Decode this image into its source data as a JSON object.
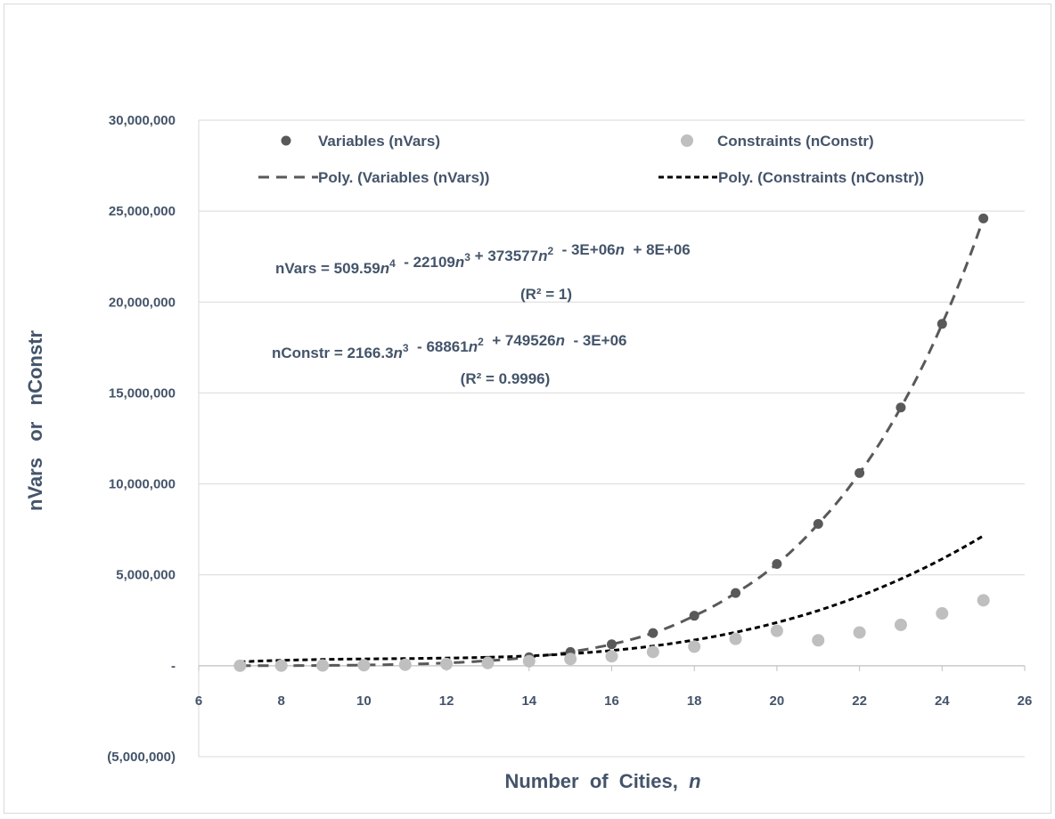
{
  "chart_data": {
    "type": "scatter",
    "xlabel": "Number  of  Cities,  ",
    "xlabel_var": "n",
    "ylabel": "nVars   or   nConstr",
    "xlim": [
      6,
      26
    ],
    "ylim": [
      -5000000,
      30000000
    ],
    "grid": true,
    "legend_position": "top",
    "x_ticks": [
      "6",
      "8",
      "10",
      "12",
      "14",
      "16",
      "18",
      "20",
      "22",
      "24",
      "26"
    ],
    "y_ticks": [
      "30,000,000",
      "25,000,000",
      "20,000,000",
      "15,000,000",
      "10,000,000",
      "5,000,000",
      "-",
      "(5,000,000)"
    ],
    "x": [
      7,
      8,
      9,
      10,
      11,
      12,
      13,
      14,
      15,
      16,
      17,
      18,
      19,
      20,
      21,
      22,
      23,
      24,
      25
    ],
    "series": [
      {
        "name": "Variables (nVars)",
        "color": "#595959",
        "values": [
          2100,
          7000,
          18000,
          40000,
          82000,
          155000,
          275000,
          470000,
          760000,
          1180000,
          1800000,
          2750000,
          4000000,
          5600000,
          7800000,
          10600000,
          14200000,
          18800000,
          24600000
        ]
      },
      {
        "name": "Constraints (nConstr)",
        "color": "#bfbfbf",
        "values": [
          2000,
          6000,
          15000,
          30000,
          55000,
          95000,
          150000,
          250000,
          370000,
          520000,
          760000,
          1050000,
          1480000,
          1920000,
          1400000,
          1830000,
          2250000,
          2880000,
          3600000
        ]
      }
    ],
    "trendlines": [
      {
        "name": "Poly. (Variables (nVars))",
        "color": "#595959",
        "style": "dashed",
        "coefficients_desc": [
          509.59,
          -22109,
          373577,
          -3000000,
          8000000
        ]
      },
      {
        "name": "Poly. (Constraints (nConstr))",
        "color": "#000000",
        "style": "dotted"
      }
    ],
    "annotations": {
      "eq1": {
        "parts": [
          {
            "t": "nVars = 509.59"
          },
          {
            "t": "n",
            "i": true
          },
          {
            "t": "4",
            "sup": true
          },
          {
            "t": "  - 22109"
          },
          {
            "t": "n",
            "i": true
          },
          {
            "t": "3",
            "sup": true
          },
          {
            "t": " + 373577"
          },
          {
            "t": "n",
            "i": true
          },
          {
            "t": "2",
            "sup": true
          },
          {
            "t": "  - 3E+06"
          },
          {
            "t": "n",
            "i": true
          },
          {
            "t": "  + 8E+06"
          }
        ],
        "r2": "(R² = 1)"
      },
      "eq2": {
        "parts": [
          {
            "t": "nConstr = 2166.3"
          },
          {
            "t": "n",
            "i": true
          },
          {
            "t": "3",
            "sup": true
          },
          {
            "t": "  - 68861"
          },
          {
            "t": "n",
            "i": true
          },
          {
            "t": "2",
            "sup": true
          },
          {
            "t": "  + 749526"
          },
          {
            "t": "n",
            "i": true
          },
          {
            "t": "  - 3E+06"
          }
        ],
        "r2": "(R² = 0.9996)"
      }
    }
  }
}
